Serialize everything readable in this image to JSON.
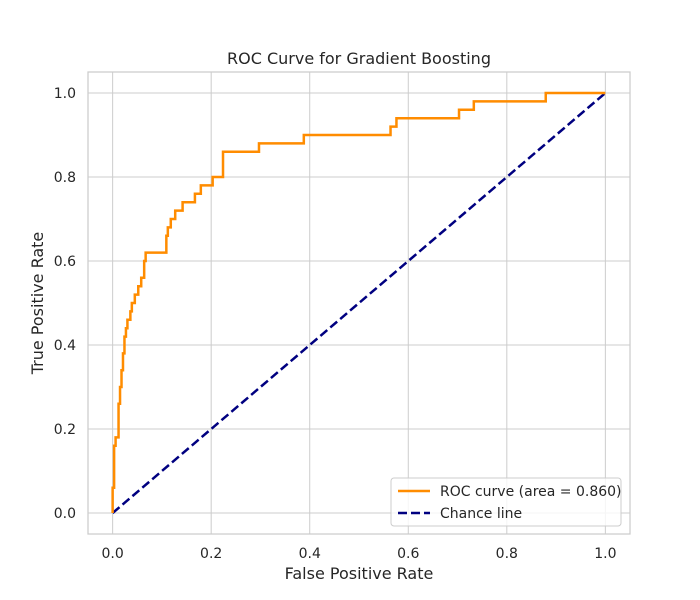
{
  "chart_data": {
    "type": "line",
    "title": "ROC Curve for Gradient Boosting",
    "xlabel": "False Positive Rate",
    "ylabel": "True Positive Rate",
    "xlim": [
      -0.05,
      1.05
    ],
    "ylim": [
      -0.05,
      1.05
    ],
    "xticks": [
      "0.0",
      "0.2",
      "0.4",
      "0.6",
      "0.8",
      "1.0"
    ],
    "yticks": [
      "0.0",
      "0.2",
      "0.4",
      "0.6",
      "0.8",
      "1.0"
    ],
    "grid": true,
    "legend": "lower-right",
    "series": [
      {
        "name": "ROC curve (area = 0.860)",
        "color": "#ff8c00",
        "style": "solid",
        "x": [
          0.0,
          0.0,
          0.003,
          0.003,
          0.006,
          0.006,
          0.012,
          0.012,
          0.015,
          0.015,
          0.018,
          0.018,
          0.021,
          0.021,
          0.024,
          0.024,
          0.027,
          0.027,
          0.03,
          0.03,
          0.036,
          0.036,
          0.039,
          0.039,
          0.042,
          0.042,
          0.045,
          0.045,
          0.052,
          0.052,
          0.058,
          0.058,
          0.064,
          0.064,
          0.067,
          0.067,
          0.07,
          0.07,
          0.109,
          0.109,
          0.112,
          0.112,
          0.118,
          0.118,
          0.127,
          0.127,
          0.142,
          0.142,
          0.167,
          0.167,
          0.179,
          0.179,
          0.203,
          0.203,
          0.224,
          0.224,
          0.227,
          0.227,
          0.297,
          0.297,
          0.388,
          0.388,
          0.564,
          0.564,
          0.576,
          0.576,
          0.703,
          0.703,
          0.733,
          0.733,
          0.879,
          0.879,
          1.0
        ],
        "y": [
          0.0,
          0.06,
          0.06,
          0.16,
          0.16,
          0.18,
          0.18,
          0.26,
          0.26,
          0.3,
          0.3,
          0.34,
          0.34,
          0.38,
          0.38,
          0.42,
          0.42,
          0.44,
          0.44,
          0.46,
          0.46,
          0.48,
          0.48,
          0.5,
          0.5,
          0.5,
          0.5,
          0.52,
          0.52,
          0.54,
          0.54,
          0.56,
          0.56,
          0.6,
          0.6,
          0.62,
          0.62,
          0.62,
          0.62,
          0.66,
          0.66,
          0.68,
          0.68,
          0.7,
          0.7,
          0.72,
          0.72,
          0.74,
          0.74,
          0.76,
          0.76,
          0.78,
          0.78,
          0.8,
          0.8,
          0.86,
          0.86,
          0.86,
          0.86,
          0.88,
          0.88,
          0.9,
          0.9,
          0.92,
          0.92,
          0.94,
          0.94,
          0.96,
          0.96,
          0.98,
          0.98,
          1.0,
          1.0
        ]
      },
      {
        "name": "Chance line",
        "color": "#000080",
        "style": "dashed",
        "x": [
          0,
          1
        ],
        "y": [
          0,
          1
        ]
      }
    ]
  }
}
